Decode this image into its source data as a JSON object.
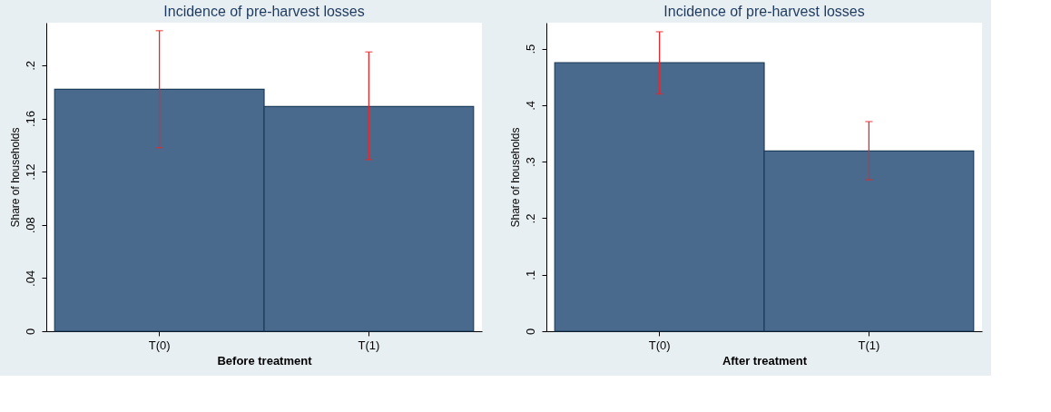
{
  "chart_data": [
    {
      "type": "bar",
      "title": "Incidence of pre-harvest losses",
      "xlabel": "Before treatment",
      "ylabel": "Share of households",
      "categories": [
        "T(0)",
        "T(1)"
      ],
      "values": [
        0.182,
        0.169
      ],
      "errors": [
        [
          0.138,
          0.226
        ],
        [
          0.129,
          0.21
        ]
      ],
      "color": "#496a8c",
      "ylim": [
        0,
        0.232
      ],
      "yticks": [
        0,
        {
          "value": 0.04,
          "label": ".04"
        },
        {
          "value": 0.08,
          "label": ".08"
        },
        {
          "value": 0.12,
          "label": ".12"
        },
        {
          "value": 0.16,
          "label": ".16"
        },
        {
          "value": 0.2,
          "label": ".2"
        }
      ],
      "grid": false
    },
    {
      "type": "bar",
      "title": "Incidence of pre-harvest losses",
      "xlabel": "After treatment",
      "ylabel": "Share of households",
      "categories": [
        "T(0)",
        "T(1)"
      ],
      "values": [
        0.475,
        0.319
      ],
      "errors": [
        [
          0.42,
          0.53
        ],
        [
          0.268,
          0.371
        ]
      ],
      "color": "#496a8c",
      "ylim": [
        0,
        0.546
      ],
      "yticks": [
        0,
        {
          "value": 0.1,
          "label": ".1"
        },
        {
          "value": 0.2,
          "label": ".2"
        },
        {
          "value": 0.3,
          "label": ".3"
        },
        {
          "value": 0.4,
          "label": ".4"
        },
        {
          "value": 0.5,
          "label": ".5"
        }
      ],
      "grid": false
    }
  ]
}
